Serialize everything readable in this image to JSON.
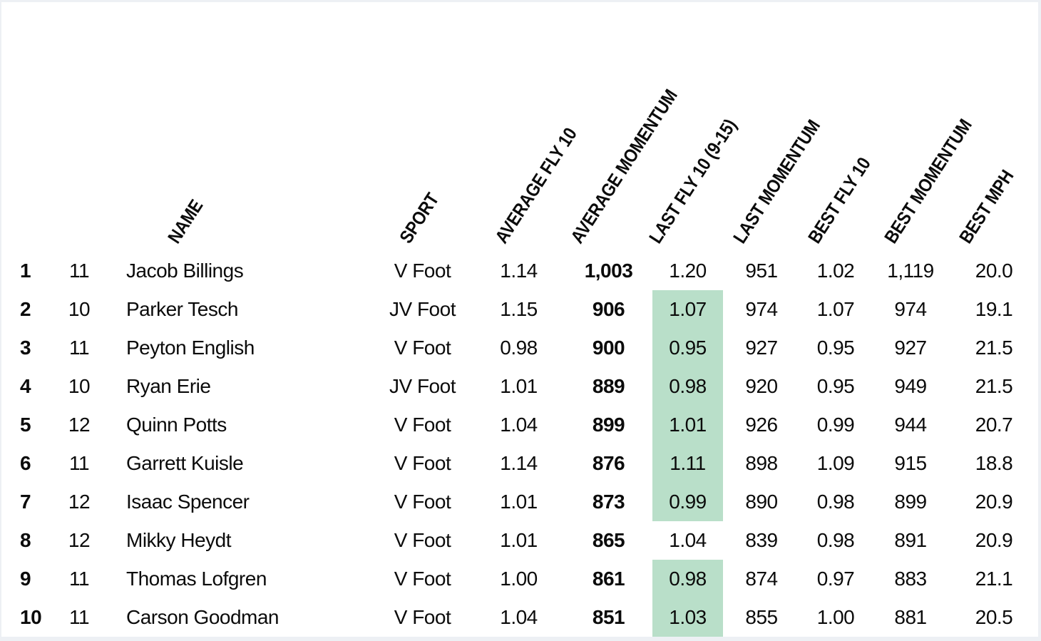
{
  "colors": {
    "highlight": "#b9dfc9",
    "page_border": "#edf0f4",
    "sheet_background": "#ffffff",
    "text": "#0b0b0b"
  },
  "table": {
    "columns": [
      {
        "key": "rank",
        "label": ""
      },
      {
        "key": "grade",
        "label": ""
      },
      {
        "key": "name",
        "label": "NAME"
      },
      {
        "key": "sport",
        "label": "SPORT"
      },
      {
        "key": "avg_fly_10",
        "label": "AVERAGE FLY 10"
      },
      {
        "key": "avg_momentum",
        "label": "AVERAGE MOMENTUM"
      },
      {
        "key": "last_fly_10",
        "label": "LAST FLY 10 (9-15)"
      },
      {
        "key": "last_momentum",
        "label": "LAST MOMENTUM"
      },
      {
        "key": "best_fly_10",
        "label": "BEST FLY 10"
      },
      {
        "key": "best_momentum",
        "label": "BEST MOMENTUM"
      },
      {
        "key": "best_mph",
        "label": "BEST MPH"
      }
    ],
    "rows": [
      {
        "rank": "1",
        "grade": "11",
        "name": "Jacob Billings",
        "sport": "V Foot",
        "avg_fly_10": "1.14",
        "avg_momentum": "1,003",
        "last_fly_10": "1.20",
        "last_fly_highlight": false,
        "last_momentum": "951",
        "best_fly_10": "1.02",
        "best_momentum": "1,119",
        "best_mph": "20.0"
      },
      {
        "rank": "2",
        "grade": "10",
        "name": "Parker Tesch",
        "sport": "JV Foot",
        "avg_fly_10": "1.15",
        "avg_momentum": "906",
        "last_fly_10": "1.07",
        "last_fly_highlight": true,
        "last_momentum": "974",
        "best_fly_10": "1.07",
        "best_momentum": "974",
        "best_mph": "19.1"
      },
      {
        "rank": "3",
        "grade": "11",
        "name": "Peyton English",
        "sport": "V Foot",
        "avg_fly_10": "0.98",
        "avg_momentum": "900",
        "last_fly_10": "0.95",
        "last_fly_highlight": true,
        "last_momentum": "927",
        "best_fly_10": "0.95",
        "best_momentum": "927",
        "best_mph": "21.5"
      },
      {
        "rank": "4",
        "grade": "10",
        "name": "Ryan Erie",
        "sport": "JV Foot",
        "avg_fly_10": "1.01",
        "avg_momentum": "889",
        "last_fly_10": "0.98",
        "last_fly_highlight": true,
        "last_momentum": "920",
        "best_fly_10": "0.95",
        "best_momentum": "949",
        "best_mph": "21.5"
      },
      {
        "rank": "5",
        "grade": "12",
        "name": "Quinn Potts",
        "sport": "V Foot",
        "avg_fly_10": "1.04",
        "avg_momentum": "899",
        "last_fly_10": "1.01",
        "last_fly_highlight": true,
        "last_momentum": "926",
        "best_fly_10": "0.99",
        "best_momentum": "944",
        "best_mph": "20.7"
      },
      {
        "rank": "6",
        "grade": "11",
        "name": "Garrett Kuisle",
        "sport": "V Foot",
        "avg_fly_10": "1.14",
        "avg_momentum": "876",
        "last_fly_10": "1.11",
        "last_fly_highlight": true,
        "last_momentum": "898",
        "best_fly_10": "1.09",
        "best_momentum": "915",
        "best_mph": "18.8"
      },
      {
        "rank": "7",
        "grade": "12",
        "name": "Isaac Spencer",
        "sport": "V Foot",
        "avg_fly_10": "1.01",
        "avg_momentum": "873",
        "last_fly_10": "0.99",
        "last_fly_highlight": true,
        "last_momentum": "890",
        "best_fly_10": "0.98",
        "best_momentum": "899",
        "best_mph": "20.9"
      },
      {
        "rank": "8",
        "grade": "12",
        "name": "Mikky Heydt",
        "sport": "V Foot",
        "avg_fly_10": "1.01",
        "avg_momentum": "865",
        "last_fly_10": "1.04",
        "last_fly_highlight": false,
        "last_momentum": "839",
        "best_fly_10": "0.98",
        "best_momentum": "891",
        "best_mph": "20.9"
      },
      {
        "rank": "9",
        "grade": "11",
        "name": "Thomas Lofgren",
        "sport": "V Foot",
        "avg_fly_10": "1.00",
        "avg_momentum": "861",
        "last_fly_10": "0.98",
        "last_fly_highlight": true,
        "last_momentum": "874",
        "best_fly_10": "0.97",
        "best_momentum": "883",
        "best_mph": "21.1"
      },
      {
        "rank": "10",
        "grade": "11",
        "name": "Carson Goodman",
        "sport": "V Foot",
        "avg_fly_10": "1.04",
        "avg_momentum": "851",
        "last_fly_10": "1.03",
        "last_fly_highlight": true,
        "last_momentum": "855",
        "best_fly_10": "1.00",
        "best_momentum": "881",
        "best_mph": "20.5"
      }
    ]
  }
}
